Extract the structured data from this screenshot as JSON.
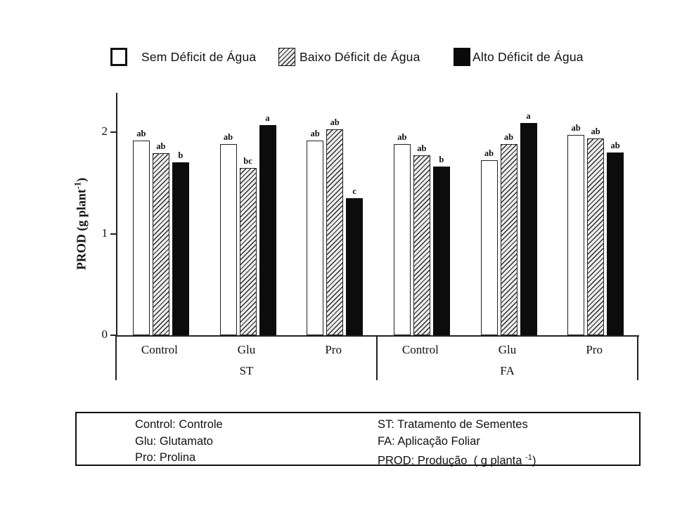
{
  "legend": {
    "items": [
      {
        "label": "Sem Déficit de Água",
        "style": "white"
      },
      {
        "label": "Baixo Déficit de Água",
        "style": "hatched"
      },
      {
        "label": "Alto Déficit de Água",
        "style": "black"
      }
    ]
  },
  "chart_data": {
    "type": "bar",
    "title": "",
    "ylabel": {
      "main": "PROD (g plant",
      "sup": "-1",
      "end": ")"
    },
    "yticks": [
      0,
      1,
      2
    ],
    "ylim": [
      0,
      2.39
    ],
    "grid": false,
    "legend_position": "top",
    "series": [
      {
        "name": "Sem Déficit de Água",
        "style": "white"
      },
      {
        "name": "Baixo Déficit de Água",
        "style": "hatched"
      },
      {
        "name": "Alto Déficit de Água",
        "style": "black"
      }
    ],
    "panels": [
      {
        "label": "ST",
        "groups": [
          {
            "category": "Control",
            "values": [
              1.92,
              1.79,
              1.7
            ],
            "letters": [
              "ab",
              "ab",
              "b"
            ]
          },
          {
            "category": "Glu",
            "values": [
              1.88,
              1.65,
              2.07
            ],
            "letters": [
              "ab",
              "bc",
              "a"
            ]
          },
          {
            "category": "Pro",
            "values": [
              1.92,
              2.03,
              1.35
            ],
            "letters": [
              "ab",
              "ab",
              "c"
            ]
          }
        ]
      },
      {
        "label": "FA",
        "groups": [
          {
            "category": "Control",
            "values": [
              1.88,
              1.77,
              1.66
            ],
            "letters": [
              "ab",
              "ab",
              "b"
            ]
          },
          {
            "category": "Glu",
            "values": [
              1.72,
              1.88,
              2.09
            ],
            "letters": [
              "ab",
              "ab",
              "a"
            ]
          },
          {
            "category": "Pro",
            "values": [
              1.97,
              1.94,
              1.8
            ],
            "letters": [
              "ab",
              "ab",
              "ab"
            ]
          }
        ]
      }
    ]
  },
  "footnotes": {
    "left": [
      "Control: Controle",
      "Glu: Glutamato",
      "Pro: Prolina"
    ],
    "right": [
      "ST: Tratamento de Sementes",
      "FA: Aplicação Foliar"
    ],
    "prod": {
      "main": "PROD: Produção  ( g planta ",
      "sup": "-1",
      "end": ")"
    }
  }
}
